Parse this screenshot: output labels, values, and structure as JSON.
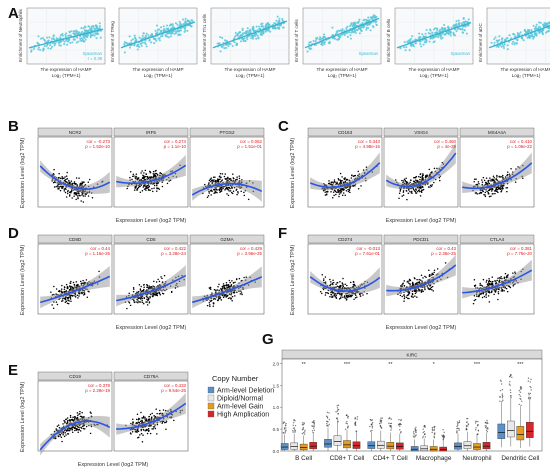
{
  "panels": {
    "A": {
      "label": "A",
      "xlabel_line1": "The expression of HAMP",
      "xlabel_line2": "Log₂ (TPM+1)",
      "point_color": "#5bc8da",
      "line_color": "#3db0d0",
      "subplots": [
        {
          "ylabel": "Enrichment of Neutrophils",
          "stat1": "Spearman",
          "stat2": "r = 0.39"
        },
        {
          "ylabel": "Enrichment of TReg",
          "stat1": "",
          "stat2": ""
        },
        {
          "ylabel": "Enrichment of Th1 cells",
          "stat1": "",
          "stat2": ""
        },
        {
          "ylabel": "Enrichment of T cells",
          "stat1": "Spearman",
          "stat2": ""
        },
        {
          "ylabel": "Enrichment of B cells",
          "stat1": "Spearman",
          "stat2": ""
        },
        {
          "ylabel": "Enrichment of aDC",
          "stat1": "",
          "stat2": ""
        }
      ]
    },
    "B": {
      "label": "B",
      "ylabel": "Expression Level (log2 TPM)",
      "xlabel": "Expression Level (log2 TPM)",
      "facets": [
        {
          "title": "NCR2",
          "cor": "cor = -0.273",
          "p": "p = 1.52e-10"
        },
        {
          "title": "IRF5",
          "cor": "cor = 0.274",
          "p": "p = 1.1e-10"
        },
        {
          "title": "PTGS2",
          "cor": "cor = 0.062",
          "p": "p = 1.51e-01"
        }
      ]
    },
    "C": {
      "label": "C",
      "ylabel": "Expression Level (log2 TPM)",
      "xlabel": "Expression Level (log2 TPM)",
      "facets": [
        {
          "title": "CD163",
          "cor": "cor = 0.343",
          "p": "p = 4.98e-16"
        },
        {
          "title": "VSIG4",
          "cor": "cor = 0.460",
          "p": "p = 4e-29"
        },
        {
          "title": "MS4A4A",
          "cor": "cor = 0.410",
          "p": "p = 1.06e-22"
        }
      ]
    },
    "D": {
      "label": "D",
      "ylabel": "Expression Level (log2 TPM)",
      "xlabel": "Expression Level (log2 TPM)",
      "facets": [
        {
          "title": "CD8D",
          "cor": "cor = 0.44",
          "p": "p = 1.16e-26"
        },
        {
          "title": "CD5",
          "cor": "cor = 0.422",
          "p": "p = 3.28e-24"
        },
        {
          "title": "GZMA",
          "cor": "cor = 0.429",
          "p": "p = 3.96e-25"
        }
      ]
    },
    "F": {
      "label": "F",
      "ylabel": "Expression Level (log2 TPM)",
      "xlabel": "Expression Level (log2 TPM)",
      "facets": [
        {
          "title": "CD274",
          "cor": "cor = -0.013",
          "p": "p = 7.61e-01"
        },
        {
          "title": "PDCD1",
          "cor": "cor = 0.43",
          "p": "p = 2.36e-25"
        },
        {
          "title": "CTLA4",
          "cor": "cor = 0.381",
          "p": "p = 7.76e-20"
        }
      ]
    },
    "E": {
      "label": "E",
      "ylabel": "Expression Level (log2 TPM)",
      "xlabel": "Expression Level (log2 TPM)",
      "facets": [
        {
          "title": "CD19",
          "cor": "cor = 0.378",
          "p": "p = 2.29e-19"
        },
        {
          "title": "CD79A",
          "cor": "cor = 0.433",
          "p": "p = 9.54e-26"
        }
      ]
    },
    "G": {
      "label": "G",
      "title": "KIRC",
      "legend_title": "Copy Number",
      "legend": [
        {
          "name": "Arm-level Deletion",
          "color": "#5b8fc8"
        },
        {
          "name": "Diploid/Normal",
          "color": "#e8e8e8"
        },
        {
          "name": "Arm-level Gain",
          "color": "#e69a20"
        },
        {
          "name": "High Amplication",
          "color": "#d62728"
        }
      ],
      "groups": [
        "B Cell",
        "CD8+ T Cell",
        "CD4+ T Cell",
        "Macrophage",
        "Neutrophil",
        "Dendritic Cell"
      ],
      "significance": [
        "**",
        "***",
        "**",
        "*",
        "***",
        "***"
      ],
      "yticks": [
        "0.0",
        "0.5",
        "1.0",
        "1.5",
        "2.0"
      ]
    }
  },
  "chart_data": {
    "type": "scatter",
    "figure_panels": [
      "A",
      "B",
      "C",
      "D",
      "E",
      "F",
      "G"
    ],
    "correlations": [
      {
        "panel": "B",
        "gene": "NCR2",
        "cor": -0.273
      },
      {
        "panel": "B",
        "gene": "IRF5",
        "cor": 0.274
      },
      {
        "panel": "B",
        "gene": "PTGS2",
        "cor": 0.062
      },
      {
        "panel": "C",
        "gene": "CD163",
        "cor": 0.343
      },
      {
        "panel": "C",
        "gene": "VSIG4",
        "cor": 0.46
      },
      {
        "panel": "C",
        "gene": "MS4A4A",
        "cor": 0.41
      },
      {
        "panel": "D",
        "gene": "CD8D",
        "cor": 0.44
      },
      {
        "panel": "D",
        "gene": "CD5",
        "cor": 0.422
      },
      {
        "panel": "D",
        "gene": "GZMA",
        "cor": 0.429
      },
      {
        "panel": "F",
        "gene": "CD274",
        "cor": -0.013
      },
      {
        "panel": "F",
        "gene": "PDCD1",
        "cor": 0.43
      },
      {
        "panel": "F",
        "gene": "CTLA4",
        "cor": 0.381
      },
      {
        "panel": "E",
        "gene": "CD19",
        "cor": 0.378
      },
      {
        "panel": "E",
        "gene": "CD79A",
        "cor": 0.433
      }
    ],
    "boxplot": {
      "title": "KIRC",
      "categories": [
        "B Cell",
        "CD8+ T Cell",
        "CD4+ T Cell",
        "Macrophage",
        "Neutrophil",
        "Dendritic Cell"
      ],
      "series": [
        {
          "name": "Arm-level Deletion",
          "medians": [
            0.09,
            0.16,
            0.12,
            0.04,
            0.1,
            0.42
          ]
        },
        {
          "name": "Diploid/Normal",
          "medians": [
            0.1,
            0.22,
            0.13,
            0.05,
            0.12,
            0.47
          ]
        },
        {
          "name": "Arm-level Gain",
          "medians": [
            0.08,
            0.14,
            0.11,
            0.04,
            0.09,
            0.38
          ]
        },
        {
          "name": "High Amplication",
          "medians": [
            0.11,
            0.12,
            0.1,
            0.03,
            0.11,
            0.45
          ]
        }
      ],
      "ylim": [
        0,
        2.1
      ]
    }
  }
}
